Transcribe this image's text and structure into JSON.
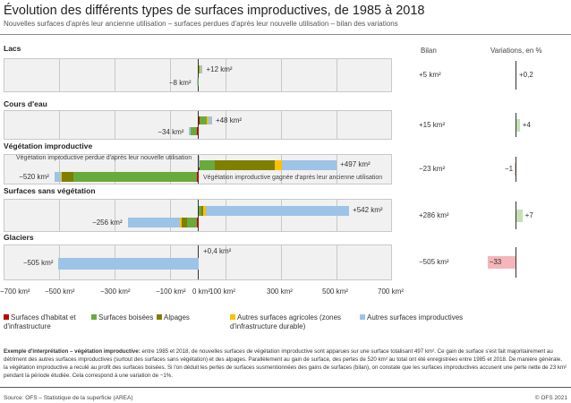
{
  "title": "Évolution des différents types de surfaces improductives, de 1985 à 2018",
  "subtitle": "Nouvelles surfaces d'après leur ancienne utilisation – surfaces perdues d'après leur nouvelle utilisation – bilan des variations",
  "colors": {
    "habitat": "#c00000",
    "boisees": "#6aaa3a",
    "alpages": "#7f7f00",
    "agricoles": "#ffc000",
    "improductives": "#9dc3e6",
    "var_pos": "#c5e0b4",
    "var_neg": "#f4b6b8"
  },
  "chart_data": {
    "type": "bar",
    "orientation": "horizontal-diverging",
    "xlim": [
      -700,
      700
    ],
    "xticks": [
      "−700 km²",
      "−500 km²",
      "−300 km²",
      "−100 km²",
      "0 km²",
      "100 km²",
      "300 km²",
      "500 km²",
      "700 km²"
    ],
    "legend": [
      "Surfaces d'habitat et d'infrastructure",
      "Surfaces boisées",
      "Alpages",
      "Autres surfaces agricoles (zones d'infrastructure durable)",
      "Autres surfaces improductives"
    ],
    "bilan_header": "Bilan",
    "variation_header": "Variations, en %",
    "categories": [
      {
        "name": "Lacs",
        "gain_label": "+12 km²",
        "loss_label": "−8 km²",
        "gain": {
          "habitat": 0,
          "boisees": 1,
          "alpages": 0,
          "agricoles": 3,
          "improductives": 8
        },
        "loss": {
          "habitat": 0,
          "boisees": 4,
          "alpages": 0,
          "agricoles": 0,
          "improductives": 4
        },
        "bilan": "+5 km²",
        "variation": 0.2,
        "variation_label": "+0,2"
      },
      {
        "name": "Cours d'eau",
        "gain_label": "+48 km²",
        "loss_label": "−34 km²",
        "gain": {
          "habitat": 3,
          "boisees": 26,
          "alpages": 0,
          "agricoles": 6,
          "improductives": 13
        },
        "loss": {
          "habitat": 6,
          "boisees": 24,
          "alpages": 0,
          "agricoles": 0,
          "improductives": 4
        },
        "bilan": "+15 km²",
        "variation": 4,
        "variation_label": "+4"
      },
      {
        "name": "Végétation improductive",
        "gain_label": "+497 km²",
        "loss_label": "−520 km²",
        "gain": {
          "habitat": 3,
          "boisees": 55,
          "alpages": 216,
          "agricoles": 26,
          "improductives": 197
        },
        "loss": {
          "habitat": 5,
          "boisees": 447,
          "alpages": 41,
          "agricoles": 5,
          "improductives": 22
        },
        "bilan": "−23 km²",
        "variation": -1,
        "variation_label": "−1",
        "annotation_loss": "Végétation improductive perdue d'après leur nouvelle utilisation",
        "annotation_gain": "Végétation improductive gagnée d'après leur ancienne utilisation"
      },
      {
        "name": "Surfaces sans végétation",
        "gain_label": "+542 km²",
        "loss_label": "−256 km²",
        "gain": {
          "habitat": 0,
          "boisees": 10,
          "alpages": 7,
          "agricoles": 9,
          "improductives": 516
        },
        "loss": {
          "habitat": 7,
          "boisees": 34,
          "alpages": 20,
          "agricoles": 7,
          "improductives": 188
        },
        "bilan": "+286 km²",
        "variation": 7,
        "variation_label": "+7"
      },
      {
        "name": "Glaciers",
        "gain_label": "+0,4 km²",
        "loss_label": "−505 km²",
        "gain": {
          "habitat": 0,
          "boisees": 0,
          "alpages": 0,
          "agricoles": 0,
          "improductives": 0.4
        },
        "loss": {
          "habitat": 0,
          "boisees": 0,
          "alpages": 0,
          "agricoles": 0,
          "improductives": 505
        },
        "bilan": "−505 km²",
        "variation": -33,
        "variation_label": "−33"
      }
    ]
  },
  "note": {
    "lead": "Exemple d'interprétation – végétation improductive:",
    "text": " entre 1985 et 2018, de nouvelles surfaces de végétation improductive sont apparues sur une surface totalisant 497 km². Ce gain de surface s'est fait majoritairement au détriment des autres surfaces improductives (surtout des surfaces sans végétation) et des alpages. Parallèlement au gain de surface, des pertes de 520 km² au total ont été enregistrées entre 1985 et 2018. De manière générale, la végétation improductive a reculé au profit des surfaces boisées. Si l'on déduit les pertes de surfaces susmentionnées des gains de surfaces (bilan), on constate que les surfaces improductives accusent une perte nette de 23 km² pendant la période étudiée. Cela correspond à une variation de −1%."
  },
  "source": "Source: OFS – Statistique de la superficie (AREA)",
  "copyright": "© OFS 2021"
}
